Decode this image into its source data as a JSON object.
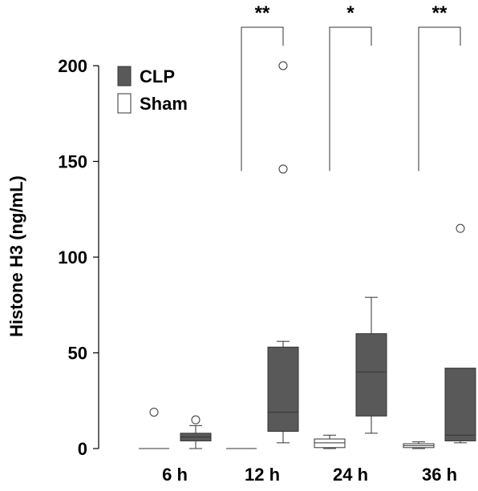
{
  "chart_data": {
    "type": "box",
    "title": "",
    "xlabel": "",
    "ylabel": "Histone H3 (ng/mL)",
    "ylim": [
      0,
      200
    ],
    "yticks": [
      0,
      50,
      100,
      150,
      200
    ],
    "categories": [
      "6 h",
      "12 h",
      "24 h",
      "36 h"
    ],
    "legend": {
      "placement": "top-left",
      "entries": [
        {
          "name": "CLP",
          "color": "#595959"
        },
        {
          "name": "Sham",
          "color": "#ffffff"
        }
      ]
    },
    "series": [
      {
        "name": "Sham",
        "color": "#ffffff",
        "boxes": [
          {
            "category": "6 h",
            "min": 0,
            "q1": 0,
            "median": 0,
            "q3": 0,
            "max": 0,
            "outliers": [
              19
            ]
          },
          {
            "category": "12 h",
            "min": 0,
            "q1": 0,
            "median": 0,
            "q3": 0,
            "max": 0,
            "outliers": []
          },
          {
            "category": "24 h",
            "min": 0,
            "q1": 0.5,
            "median": 3,
            "q3": 5,
            "max": 7,
            "outliers": []
          },
          {
            "category": "36 h",
            "min": 0,
            "q1": 0.5,
            "median": 1.5,
            "q3": 2.5,
            "max": 3.5,
            "outliers": []
          }
        ]
      },
      {
        "name": "CLP",
        "color": "#595959",
        "boxes": [
          {
            "category": "6 h",
            "min": 0,
            "q1": 4,
            "median": 6,
            "q3": 8,
            "max": 12,
            "outliers": [
              15
            ]
          },
          {
            "category": "12 h",
            "min": 3,
            "q1": 9,
            "median": 19,
            "q3": 53,
            "max": 56,
            "outliers": [
              146,
              200
            ]
          },
          {
            "category": "24 h",
            "min": 8,
            "q1": 17,
            "median": 40,
            "q3": 60,
            "max": 79,
            "outliers": []
          },
          {
            "category": "36 h",
            "min": 3,
            "q1": 4,
            "median": 7,
            "q3": 42,
            "max": 42,
            "outliers": [
              115
            ]
          }
        ]
      }
    ],
    "significance": [
      {
        "category": "12 h",
        "label": "**"
      },
      {
        "category": "24 h",
        "label": "*"
      },
      {
        "category": "36 h",
        "label": "**"
      }
    ]
  }
}
